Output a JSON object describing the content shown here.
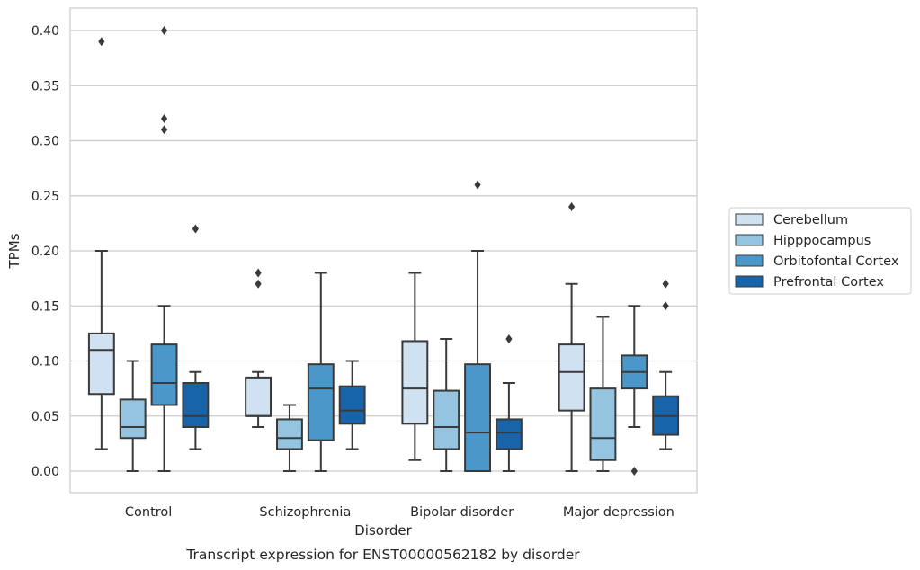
{
  "chart_data": {
    "type": "box",
    "title": "Transcript expression for ENST00000562182 by disorder",
    "xlabel": "Disorder",
    "ylabel": "TPMs",
    "ylim": [
      -0.019,
      0.42
    ],
    "yticks": [
      0.0,
      0.05,
      0.1,
      0.15,
      0.2,
      0.25,
      0.3,
      0.35,
      0.4
    ],
    "ytick_labels": [
      "0.00",
      "0.05",
      "0.10",
      "0.15",
      "0.20",
      "0.25",
      "0.30",
      "0.35",
      "0.40"
    ],
    "grid": true,
    "legend_position": "right",
    "categories": [
      "Control",
      "Schizophrenia",
      "Bipolar disorder",
      "Major depression"
    ],
    "series": [
      {
        "name": "Cerebellum",
        "color": "#d0e1f2",
        "boxes": [
          {
            "whisker_low": 0.02,
            "q1": 0.07,
            "median": 0.11,
            "q3": 0.125,
            "whisker_high": 0.2,
            "outliers": [
              0.39
            ]
          },
          {
            "whisker_low": 0.04,
            "q1": 0.05,
            "median": 0.05,
            "q3": 0.085,
            "whisker_high": 0.09,
            "outliers": [
              0.18,
              0.17
            ]
          },
          {
            "whisker_low": 0.01,
            "q1": 0.043,
            "median": 0.075,
            "q3": 0.118,
            "whisker_high": 0.18,
            "outliers": []
          },
          {
            "whisker_low": 0.0,
            "q1": 0.055,
            "median": 0.09,
            "q3": 0.115,
            "whisker_high": 0.17,
            "outliers": [
              0.24
            ]
          }
        ]
      },
      {
        "name": "Hipppocampus",
        "color": "#94c4df",
        "boxes": [
          {
            "whisker_low": 0.0,
            "q1": 0.03,
            "median": 0.04,
            "q3": 0.065,
            "whisker_high": 0.1,
            "outliers": []
          },
          {
            "whisker_low": 0.0,
            "q1": 0.02,
            "median": 0.03,
            "q3": 0.047,
            "whisker_high": 0.06,
            "outliers": []
          },
          {
            "whisker_low": 0.0,
            "q1": 0.02,
            "median": 0.04,
            "q3": 0.073,
            "whisker_high": 0.12,
            "outliers": []
          },
          {
            "whisker_low": 0.0,
            "q1": 0.01,
            "median": 0.03,
            "q3": 0.075,
            "whisker_high": 0.14,
            "outliers": []
          }
        ]
      },
      {
        "name": "Orbitofontal Cortex",
        "color": "#4a98c9",
        "boxes": [
          {
            "whisker_low": 0.0,
            "q1": 0.06,
            "median": 0.08,
            "q3": 0.115,
            "whisker_high": 0.15,
            "outliers": [
              0.4,
              0.32,
              0.31
            ]
          },
          {
            "whisker_low": 0.0,
            "q1": 0.028,
            "median": 0.075,
            "q3": 0.097,
            "whisker_high": 0.18,
            "outliers": []
          },
          {
            "whisker_low": 0.0,
            "q1": 0.0,
            "median": 0.035,
            "q3": 0.097,
            "whisker_high": 0.2,
            "outliers": [
              0.26
            ]
          },
          {
            "whisker_low": 0.04,
            "q1": 0.075,
            "median": 0.09,
            "q3": 0.105,
            "whisker_high": 0.15,
            "outliers": [
              0.0
            ]
          }
        ]
      },
      {
        "name": "Prefrontal Cortex",
        "color": "#1764ab",
        "boxes": [
          {
            "whisker_low": 0.02,
            "q1": 0.04,
            "median": 0.05,
            "q3": 0.08,
            "whisker_high": 0.09,
            "outliers": [
              0.22
            ]
          },
          {
            "whisker_low": 0.02,
            "q1": 0.043,
            "median": 0.055,
            "q3": 0.077,
            "whisker_high": 0.1,
            "outliers": []
          },
          {
            "whisker_low": 0.0,
            "q1": 0.02,
            "median": 0.035,
            "q3": 0.047,
            "whisker_high": 0.08,
            "outliers": [
              0.12
            ]
          },
          {
            "whisker_low": 0.02,
            "q1": 0.033,
            "median": 0.05,
            "q3": 0.068,
            "whisker_high": 0.09,
            "outliers": [
              0.17,
              0.15
            ]
          }
        ]
      }
    ]
  }
}
